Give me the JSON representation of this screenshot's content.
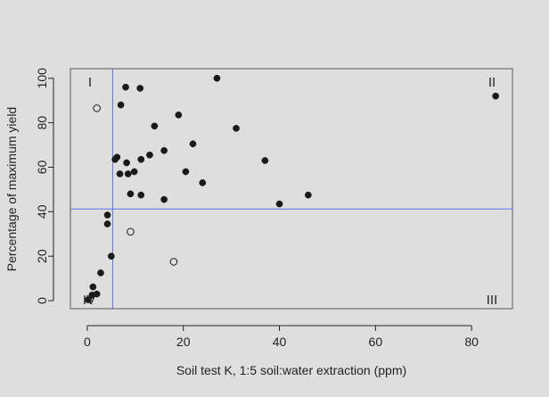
{
  "colors": {
    "background": "#dedede",
    "axis": "#222222",
    "plot_border": "#5a5a5a",
    "reference_lines": "#5b73e8",
    "points": "#1a1a1a"
  },
  "chart_data": {
    "type": "scatter",
    "title": "",
    "xlabel": "Soil test K, 1:5 soil:water extraction (ppm)",
    "ylabel": "Percentage of maximum yield",
    "xlim": [
      -3.5,
      88.5
    ],
    "ylim": [
      -3.6,
      104.3
    ],
    "x_ticks": [
      0,
      20,
      40,
      60,
      80
    ],
    "y_ticks": [
      0,
      20,
      40,
      60,
      80,
      100
    ],
    "grid": false,
    "reference_lines": {
      "vertical_x": 5.3,
      "horizontal_y": 41.2
    },
    "quadrant_labels": [
      "I",
      "II",
      "III",
      "IV"
    ],
    "series": [
      {
        "marker": "filled-circle",
        "points": [
          [
            0.2,
            0.4
          ],
          [
            1.0,
            2.5
          ],
          [
            1.2,
            6.2
          ],
          [
            2.0,
            3.0
          ],
          [
            2.8,
            12.5
          ],
          [
            4.2,
            34.5
          ],
          [
            4.2,
            38.5
          ],
          [
            5.0,
            20.0
          ],
          [
            5.8,
            63.5
          ],
          [
            6.2,
            64.5
          ],
          [
            6.8,
            57.0
          ],
          [
            7.0,
            88.0
          ],
          [
            8.0,
            96.0
          ],
          [
            8.2,
            62.0
          ],
          [
            8.5,
            57.0
          ],
          [
            9.0,
            48.0
          ],
          [
            9.8,
            58.0
          ],
          [
            11.0,
            95.5
          ],
          [
            11.2,
            63.5
          ],
          [
            11.2,
            47.5
          ],
          [
            13.0,
            65.5
          ],
          [
            14.0,
            78.5
          ],
          [
            16.0,
            67.5
          ],
          [
            16.0,
            45.5
          ],
          [
            19.0,
            83.5
          ],
          [
            20.5,
            58.0
          ],
          [
            22.0,
            70.5
          ],
          [
            24.0,
            53.0
          ],
          [
            27.0,
            100.0
          ],
          [
            31.0,
            77.5
          ],
          [
            37.0,
            63.0
          ],
          [
            40.0,
            43.5
          ],
          [
            46.0,
            47.5
          ],
          [
            85.0,
            92.0
          ]
        ]
      },
      {
        "marker": "open-circle",
        "points": [
          [
            2.0,
            86.5
          ],
          [
            9.0,
            31.0
          ],
          [
            18.0,
            17.5
          ]
        ]
      }
    ]
  }
}
